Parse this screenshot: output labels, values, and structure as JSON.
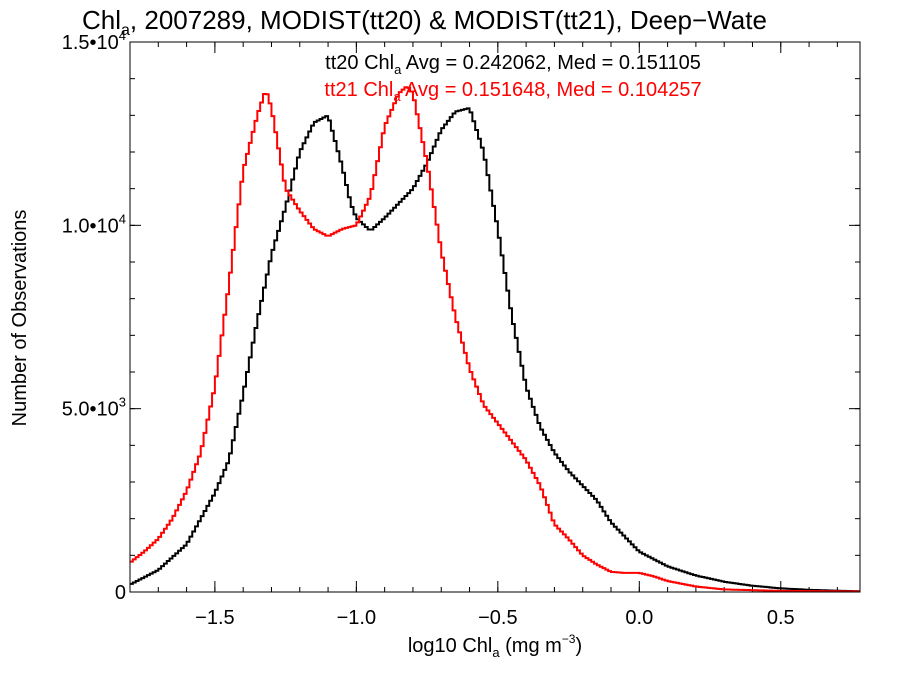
{
  "chart_data": {
    "type": "line",
    "title": {
      "pre": "Chl",
      "sub": "a",
      "post": ", 2007289, MODIST(tt20) & MODIST(tt21), Deep−Wate"
    },
    "xlabel": {
      "pre": "log10 Chl",
      "sub": "a",
      "mid": " (mg m",
      "sup": "−3",
      "post": ")"
    },
    "ylabel": "Number of Observations",
    "xlim": [
      -1.8,
      0.78
    ],
    "ylim": [
      0,
      15000
    ],
    "x_ticks": [
      {
        "value": -1.5,
        "label": "−1.5"
      },
      {
        "value": -1.0,
        "label": "−1.0"
      },
      {
        "value": -0.5,
        "label": "−0.5"
      },
      {
        "value": 0.0,
        "label": "0.0"
      },
      {
        "value": 0.5,
        "label": "0.5"
      }
    ],
    "y_ticks": [
      {
        "value": 0,
        "mant": "0",
        "exp": ""
      },
      {
        "value": 5000,
        "mant": "5.0•10",
        "exp": "3"
      },
      {
        "value": 10000,
        "mant": "1.0•10",
        "exp": "4"
      },
      {
        "value": 15000,
        "mant": "1.5•10",
        "exp": "4"
      }
    ],
    "x_minor_step": 0.1,
    "y_minor_step": 1000,
    "grid": false,
    "annotations": [
      {
        "pre": "tt20 Chl",
        "sub": "a",
        "post": " Avg = 0.242062, Med = 0.151105",
        "color": "#000000"
      },
      {
        "pre": "tt21 Chl",
        "sub": "a",
        "post": " Avg = 0.151648, Med = 0.104257",
        "color": "#ff0000"
      }
    ],
    "series": [
      {
        "color": "#000000",
        "x": [
          -1.8,
          -1.7,
          -1.6,
          -1.5,
          -1.45,
          -1.4,
          -1.35,
          -1.3,
          -1.25,
          -1.2,
          -1.15,
          -1.1,
          -1.05,
          -1.02,
          -1.0,
          -0.95,
          -0.9,
          -0.85,
          -0.8,
          -0.75,
          -0.7,
          -0.65,
          -0.6,
          -0.55,
          -0.5,
          -0.45,
          -0.4,
          -0.35,
          -0.3,
          -0.25,
          -0.2,
          -0.15,
          -0.1,
          -0.05,
          0.0,
          0.05,
          0.1,
          0.2,
          0.3,
          0.4,
          0.5,
          0.6,
          0.7,
          0.78
        ],
        "y": [
          200,
          600,
          1300,
          2700,
          3600,
          5400,
          7400,
          9200,
          10500,
          12000,
          12800,
          13000,
          11600,
          10600,
          10200,
          9850,
          10200,
          10600,
          11000,
          11700,
          12600,
          13100,
          13200,
          12000,
          9900,
          7500,
          5600,
          4500,
          3800,
          3300,
          2900,
          2500,
          1900,
          1500,
          1100,
          900,
          700,
          450,
          280,
          170,
          100,
          60,
          35,
          20
        ]
      },
      {
        "color": "#ff0000",
        "x": [
          -1.8,
          -1.75,
          -1.7,
          -1.65,
          -1.6,
          -1.55,
          -1.5,
          -1.45,
          -1.4,
          -1.35,
          -1.32,
          -1.3,
          -1.25,
          -1.2,
          -1.15,
          -1.1,
          -1.05,
          -1.0,
          -0.95,
          -0.9,
          -0.85,
          -0.82,
          -0.8,
          -0.75,
          -0.7,
          -0.65,
          -0.6,
          -0.55,
          -0.5,
          -0.45,
          -0.4,
          -0.35,
          -0.3,
          -0.25,
          -0.2,
          -0.15,
          -0.1,
          -0.05,
          0.0,
          0.05,
          0.1,
          0.2,
          0.3,
          0.5,
          0.78
        ],
        "y": [
          800,
          1100,
          1450,
          2000,
          2750,
          3800,
          5600,
          8400,
          11500,
          13000,
          13700,
          13200,
          11000,
          10400,
          9900,
          9700,
          9900,
          10000,
          10800,
          12700,
          13600,
          13800,
          13600,
          11700,
          9300,
          7500,
          6100,
          5100,
          4600,
          4100,
          3600,
          2900,
          1850,
          1450,
          1000,
          750,
          550,
          520,
          520,
          430,
          300,
          150,
          70,
          30,
          15
        ]
      }
    ]
  }
}
